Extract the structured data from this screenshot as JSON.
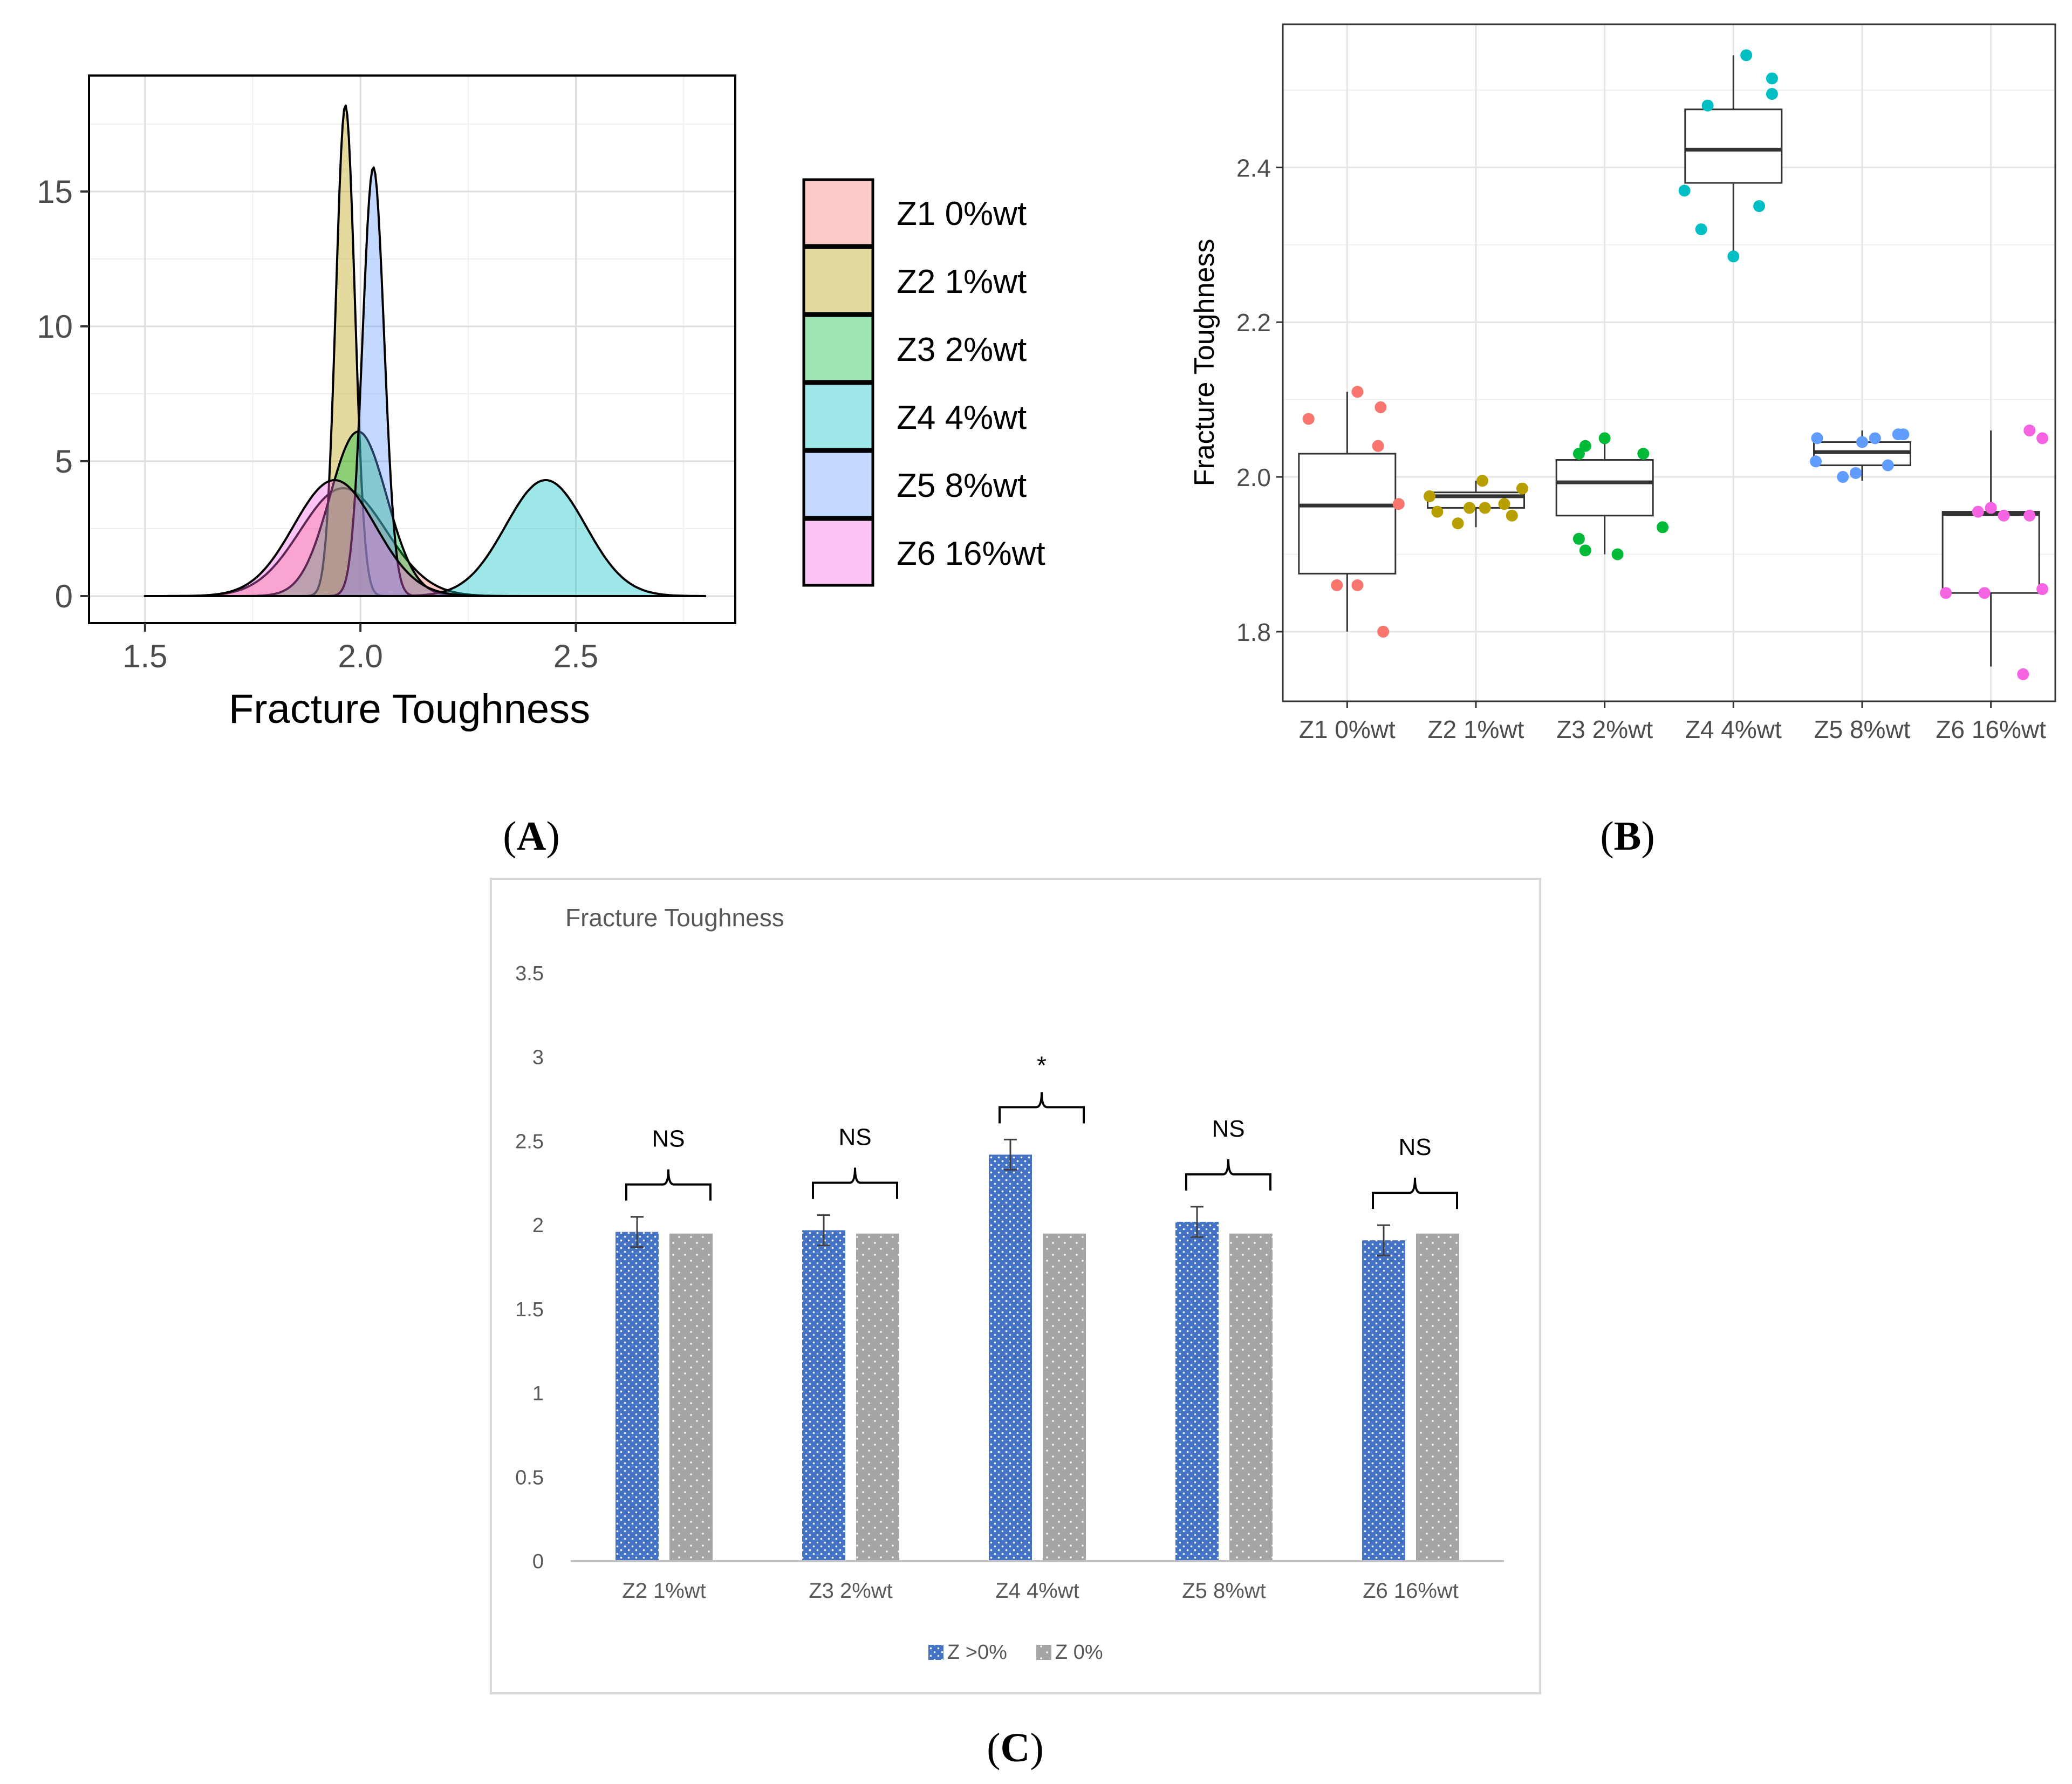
{
  "figure": {
    "panel_labels": {
      "a": "A",
      "b": "B",
      "c": "C"
    }
  },
  "colors": {
    "z1": "#F8766D",
    "z2": "#B79F00",
    "z3": "#00BA38",
    "z4": "#00BFC4",
    "z5": "#619CFF",
    "z6": "#F564E3",
    "bar_blue": "#4472C4",
    "bar_gray": "#A5A5A5"
  },
  "chart_data": [
    {
      "id": "A",
      "type": "area",
      "title": "",
      "xlabel": "Fracture Toughness",
      "ylabel": "",
      "xlim": [
        1.37,
        2.87
      ],
      "ylim": [
        -1.0,
        19.3
      ],
      "xticks": [
        1.5,
        2.0,
        2.5
      ],
      "xtick_labels": [
        "1.5",
        "2.0",
        "2.5"
      ],
      "yticks": [
        0,
        5,
        10,
        15
      ],
      "ytick_labels": [
        "0",
        "5",
        "10",
        "15"
      ],
      "grid": true,
      "legend_position": "right",
      "curve_range": [
        1.5,
        2.8
      ],
      "series": [
        {
          "name": "Z1 0%wt",
          "mean": 1.96,
          "sd": 0.1,
          "peak": 4.0
        },
        {
          "name": "Z2 1%wt",
          "mean": 1.965,
          "sd": 0.022,
          "peak": 18.2
        },
        {
          "name": "Z3 2%wt",
          "mean": 1.995,
          "sd": 0.066,
          "peak": 6.1
        },
        {
          "name": "Z4 4%wt",
          "mean": 2.43,
          "sd": 0.093,
          "peak": 4.3
        },
        {
          "name": "Z5 8%wt",
          "mean": 2.03,
          "sd": 0.025,
          "peak": 15.9
        },
        {
          "name": "Z6 16%wt",
          "mean": 1.94,
          "sd": 0.095,
          "peak": 4.3
        }
      ]
    },
    {
      "id": "B",
      "type": "scatter",
      "title": "",
      "xlabel": "",
      "ylabel": "Fracture Toughness",
      "ylim": [
        1.71,
        2.585
      ],
      "yticks": [
        1.8,
        2.0,
        2.2,
        2.4
      ],
      "ytick_labels": [
        "1.8",
        "2.0",
        "2.2",
        "2.4"
      ],
      "grid": true,
      "categories": [
        "Z1 0%wt",
        "Z2 1%wt",
        "Z3 2%wt",
        "Z4 4%wt",
        "Z5 8%wt",
        "Z6 16%wt"
      ],
      "boxes": [
        {
          "q1": 1.875,
          "median": 1.963,
          "q3": 2.03,
          "lo": 1.8,
          "hi": 2.11
        },
        {
          "q1": 1.96,
          "median": 1.975,
          "q3": 1.98,
          "lo": 1.935,
          "hi": 1.995
        },
        {
          "q1": 1.95,
          "median": 1.993,
          "q3": 2.022,
          "lo": 1.9,
          "hi": 2.05
        },
        {
          "q1": 2.38,
          "median": 2.423,
          "q3": 2.475,
          "lo": 2.28,
          "hi": 2.545
        },
        {
          "q1": 2.015,
          "median": 2.032,
          "q3": 2.045,
          "lo": 1.995,
          "hi": 2.06
        },
        {
          "q1": 1.85,
          "median": 1.952,
          "q3": 1.955,
          "lo": 1.755,
          "hi": 2.06
        }
      ],
      "points": [
        [
          [
            -0.3,
            2.075
          ],
          [
            0.08,
            2.11
          ],
          [
            0.26,
            2.09
          ],
          [
            0.24,
            2.04
          ],
          [
            0.4,
            1.965
          ],
          [
            -0.08,
            1.86
          ],
          [
            0.08,
            1.86
          ],
          [
            0.28,
            1.8
          ]
        ],
        [
          [
            -0.36,
            1.975
          ],
          [
            -0.3,
            1.955
          ],
          [
            -0.14,
            1.94
          ],
          [
            -0.05,
            1.96
          ],
          [
            0.07,
            1.96
          ],
          [
            0.05,
            1.995
          ],
          [
            0.22,
            1.965
          ],
          [
            0.28,
            1.95
          ],
          [
            0.36,
            1.985
          ]
        ],
        [
          [
            -0.2,
            2.03
          ],
          [
            -0.15,
            2.04
          ],
          [
            0.0,
            2.05
          ],
          [
            -0.2,
            1.92
          ],
          [
            -0.15,
            1.905
          ],
          [
            0.1,
            1.9
          ],
          [
            0.3,
            2.03
          ],
          [
            0.45,
            1.935
          ]
        ],
        [
          [
            -0.38,
            2.37
          ],
          [
            -0.25,
            2.32
          ],
          [
            -0.2,
            2.48
          ],
          [
            0.0,
            2.285
          ],
          [
            0.1,
            2.545
          ],
          [
            0.2,
            2.35
          ],
          [
            0.3,
            2.515
          ],
          [
            0.3,
            2.495
          ]
        ],
        [
          [
            -0.35,
            2.05
          ],
          [
            -0.36,
            2.02
          ],
          [
            -0.15,
            2.0
          ],
          [
            -0.05,
            2.005
          ],
          [
            0.0,
            2.045
          ],
          [
            0.1,
            2.05
          ],
          [
            0.2,
            2.015
          ],
          [
            0.28,
            2.055
          ],
          [
            0.32,
            2.055
          ]
        ],
        [
          [
            -0.35,
            1.85
          ],
          [
            -0.1,
            1.955
          ],
          [
            -0.05,
            1.85
          ],
          [
            0.0,
            1.96
          ],
          [
            0.1,
            1.95
          ],
          [
            0.25,
            1.745
          ],
          [
            0.3,
            2.06
          ],
          [
            0.3,
            1.95
          ],
          [
            0.4,
            2.05
          ],
          [
            0.4,
            1.855
          ]
        ]
      ]
    },
    {
      "id": "C",
      "type": "bar",
      "title": "Fracture Toughness",
      "xlabel": "",
      "ylabel": "",
      "ylim": [
        0,
        3.5
      ],
      "yticks": [
        0,
        0.5,
        1,
        1.5,
        2,
        2.5,
        3,
        3.5
      ],
      "ytick_labels": [
        "0",
        "0.5",
        "1",
        "1.5",
        "2",
        "2.5",
        "3",
        "3.5"
      ],
      "grid": false,
      "legend_position": "bottom",
      "categories": [
        "Z2 1%wt",
        "Z3 2%wt",
        "Z4 4%wt",
        "Z5 8%wt",
        "Z6 16%wt"
      ],
      "series": [
        {
          "name": "Z >0%",
          "values": [
            1.96,
            1.97,
            2.42,
            2.02,
            1.91
          ],
          "errors": [
            0.09,
            0.09,
            0.09,
            0.09,
            0.09
          ]
        },
        {
          "name": "Z 0%",
          "values": [
            1.95,
            1.95,
            1.95,
            1.95,
            1.95
          ],
          "errors": [
            0,
            0,
            0,
            0,
            0
          ]
        }
      ],
      "annotations": [
        "NS",
        "NS",
        "*",
        "NS",
        "NS"
      ]
    }
  ]
}
